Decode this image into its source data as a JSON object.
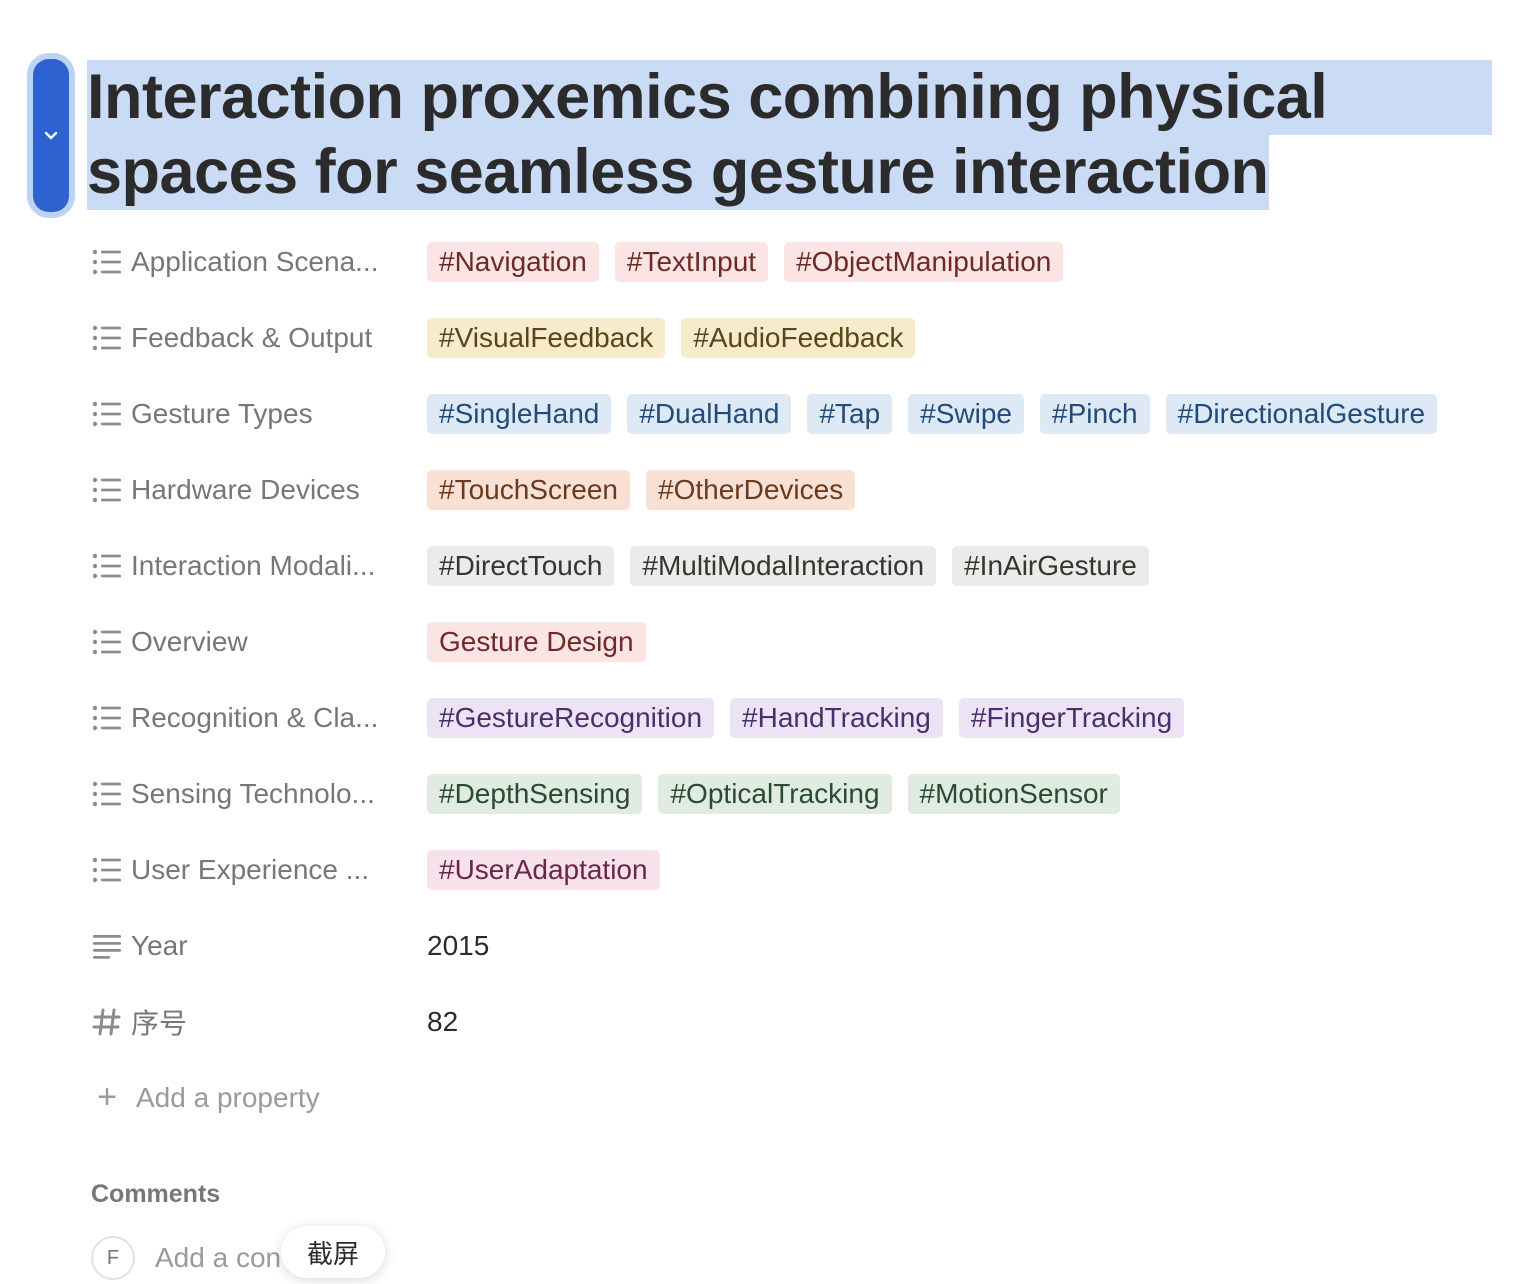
{
  "page": {
    "title_line1": "Interaction proxemics combining physical",
    "title_line2": "spaces for seamless gesture interaction"
  },
  "block_handle": {
    "icon": "chevron-down-icon"
  },
  "properties": [
    {
      "label": "Application Scena...",
      "icon": "list-icon",
      "tags": [
        {
          "text": "#Navigation",
          "bg": "#fbe4e4",
          "fg": "#6e2a27"
        },
        {
          "text": "#TextInput",
          "bg": "#fbe4e4",
          "fg": "#6e2a27"
        },
        {
          "text": "#ObjectManipulation",
          "bg": "#fbe4e4",
          "fg": "#6e2a27"
        }
      ]
    },
    {
      "label": "Feedback & Output",
      "icon": "list-icon",
      "tags": [
        {
          "text": "#VisualFeedback",
          "bg": "#f6eccb",
          "fg": "#5a4519"
        },
        {
          "text": "#AudioFeedback",
          "bg": "#f6eccb",
          "fg": "#5a4519"
        }
      ]
    },
    {
      "label": "Gesture Types",
      "icon": "list-icon",
      "tags": [
        {
          "text": "#SingleHand",
          "bg": "#dde9f5",
          "fg": "#214b7a"
        },
        {
          "text": "#DualHand",
          "bg": "#dde9f5",
          "fg": "#214b7a"
        },
        {
          "text": "#Tap",
          "bg": "#dde9f5",
          "fg": "#214b7a"
        },
        {
          "text": "#Swipe",
          "bg": "#dde9f5",
          "fg": "#214b7a"
        },
        {
          "text": "#Pinch",
          "bg": "#dde9f5",
          "fg": "#214b7a"
        },
        {
          "text": "#DirectionalGesture",
          "bg": "#dde9f5",
          "fg": "#214b7a"
        }
      ]
    },
    {
      "label": "Hardware Devices",
      "icon": "list-icon",
      "tags": [
        {
          "text": "#TouchScreen",
          "bg": "#f8e0d4",
          "fg": "#6b3a1d"
        },
        {
          "text": "#OtherDevices",
          "bg": "#f8e0d4",
          "fg": "#6b3a1d"
        }
      ]
    },
    {
      "label": "Interaction Modali...",
      "icon": "list-icon",
      "tags": [
        {
          "text": "#DirectTouch",
          "bg": "#ebebea",
          "fg": "#37352f"
        },
        {
          "text": "#MultiModalInteraction",
          "bg": "#ebebea",
          "fg": "#37352f"
        },
        {
          "text": "#InAirGesture",
          "bg": "#ebebea",
          "fg": "#37352f"
        }
      ]
    },
    {
      "label": "Overview",
      "icon": "list-icon",
      "tags": [
        {
          "text": "Gesture Design",
          "bg": "#fbe4e4",
          "fg": "#6e2a27"
        }
      ]
    },
    {
      "label": "Recognition & Cla...",
      "icon": "list-icon",
      "tags": [
        {
          "text": "#GestureRecognition",
          "bg": "#ece4f4",
          "fg": "#4b2e6b"
        },
        {
          "text": "#HandTracking",
          "bg": "#ece4f4",
          "fg": "#4b2e6b"
        },
        {
          "text": "#FingerTracking",
          "bg": "#ece4f4",
          "fg": "#4b2e6b"
        }
      ]
    },
    {
      "label": "Sensing Technolo...",
      "icon": "list-icon",
      "tags": [
        {
          "text": "#DepthSensing",
          "bg": "#e0ebe2",
          "fg": "#2b4a33"
        },
        {
          "text": "#OpticalTracking",
          "bg": "#e0ebe2",
          "fg": "#2b4a33"
        },
        {
          "text": "#MotionSensor",
          "bg": "#e0ebe2",
          "fg": "#2b4a33"
        }
      ]
    },
    {
      "label": "User Experience ...",
      "icon": "list-icon",
      "tags": [
        {
          "text": "#UserAdaptation",
          "bg": "#f7e1ea",
          "fg": "#6b2747"
        }
      ]
    },
    {
      "label": "Year",
      "icon": "text-lines-icon",
      "value": "2015"
    },
    {
      "label": "序号",
      "icon": "hash-icon",
      "value": "82"
    }
  ],
  "add_property": {
    "label": "Add a property",
    "icon": "plus-icon"
  },
  "comments": {
    "title": "Comments",
    "avatar_initial": "F",
    "placeholder": "Add a con"
  },
  "tooltip": {
    "label": "截屏"
  }
}
